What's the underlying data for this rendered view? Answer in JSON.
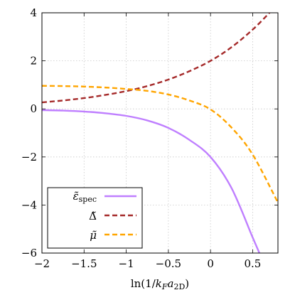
{
  "chart_data": {
    "type": "line",
    "title": "",
    "xlabel": "ln(1/k_F a_2D)",
    "ylabel": "",
    "xlim": [
      -2,
      0.8
    ],
    "ylim": [
      -6,
      4
    ],
    "xticks": [
      -2,
      -1.5,
      -1,
      -0.5,
      0,
      0.5
    ],
    "xtick_labels": [
      "−2",
      "−1.5",
      "−1",
      "−0.5",
      "0",
      "0.5"
    ],
    "yticks": [
      -6,
      -4,
      -2,
      0,
      2,
      4
    ],
    "ytick_labels": [
      "−6",
      "−4",
      "−2",
      "0",
      "2",
      "4"
    ],
    "grid": true,
    "legend_position": "bottom-left",
    "series": [
      {
        "name": "ε̃spec",
        "color": "#bf7fff",
        "dash": "solid",
        "x": [
          -2.0,
          -1.75,
          -1.5,
          -1.25,
          -1.0,
          -0.75,
          -0.5,
          -0.25,
          0.0,
          0.25,
          0.5,
          0.58
        ],
        "values": [
          -0.05,
          -0.07,
          -0.11,
          -0.18,
          -0.29,
          -0.48,
          -0.79,
          -1.29,
          -2.0,
          -3.3,
          -5.35,
          -6.0
        ]
      },
      {
        "name": "Δ̃",
        "color": "#a52a2a",
        "dash": "dashed",
        "x": [
          -2.0,
          -1.75,
          -1.5,
          -1.25,
          -1.0,
          -0.75,
          -0.5,
          -0.25,
          0.0,
          0.25,
          0.5,
          0.7
        ],
        "values": [
          0.27,
          0.35,
          0.45,
          0.58,
          0.74,
          0.95,
          1.22,
          1.57,
          2.0,
          2.57,
          3.3,
          4.0
        ]
      },
      {
        "name": "μ̃",
        "color": "#ffa500",
        "dash": "dashed",
        "x": [
          -2.0,
          -1.75,
          -1.5,
          -1.25,
          -1.0,
          -0.75,
          -0.5,
          -0.25,
          0.0,
          0.25,
          0.5,
          0.8
        ],
        "values": [
          0.96,
          0.95,
          0.93,
          0.89,
          0.83,
          0.75,
          0.6,
          0.35,
          -0.02,
          -0.78,
          -1.9,
          -3.9
        ]
      }
    ]
  }
}
